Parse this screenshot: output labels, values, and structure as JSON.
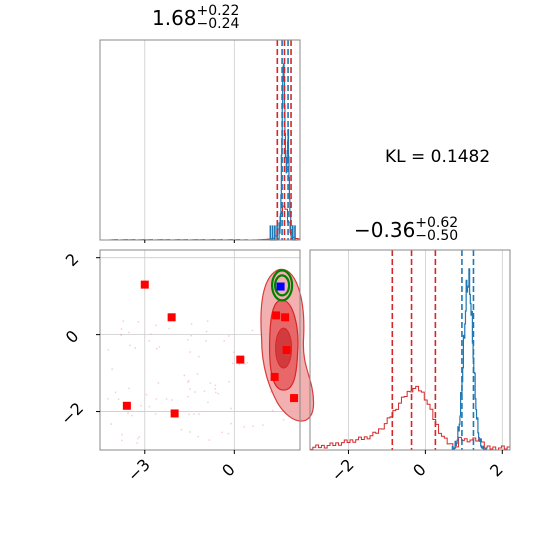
{
  "chart_data": [
    {
      "type": "histogram",
      "panel": "top-left",
      "title_value": "1.68",
      "title_plus": "+0.22",
      "title_minus": "−0.24",
      "xlim": [
        -4.5,
        2.2
      ],
      "red_dashed_lines": [
        1.44,
        1.68,
        1.9
      ],
      "blue_dashed_lines": [
        1.6,
        1.8
      ],
      "blue_peak": 1.65,
      "colors": {
        "red": "#d62728",
        "blue": "#1f77b4"
      }
    },
    {
      "type": "scatter",
      "panel": "bottom-left",
      "xlim": [
        -4.5,
        2.2
      ],
      "ylim": [
        -3.0,
        2.2
      ],
      "x_ticks": [
        "−3",
        "0"
      ],
      "y_ticks": [
        "2",
        "0",
        "−2"
      ],
      "red_squares": [
        {
          "x": -3.0,
          "y": 1.3
        },
        {
          "x": -2.1,
          "y": 0.45
        },
        {
          "x": -3.6,
          "y": -1.85
        },
        {
          "x": -2.0,
          "y": -2.05
        },
        {
          "x": 0.2,
          "y": -0.65
        },
        {
          "x": 1.4,
          "y": 0.5
        },
        {
          "x": 1.7,
          "y": 0.45
        },
        {
          "x": 1.75,
          "y": -0.4
        },
        {
          "x": 1.35,
          "y": -1.1
        },
        {
          "x": 2.0,
          "y": -1.65
        }
      ],
      "blue_square": {
        "x": 1.55,
        "y": 1.25
      },
      "red_contour_center": {
        "x": 1.65,
        "y": -0.35
      },
      "green_contour_center": {
        "x": 1.6,
        "y": 1.28
      },
      "colors": {
        "red": "#d62728",
        "blue": "#0000ff",
        "green": "#008000"
      }
    },
    {
      "type": "histogram",
      "panel": "bottom-right",
      "title_value": "−0.36",
      "title_plus": "+0.62",
      "title_minus": "−0.50",
      "xlim": [
        -3.0,
        2.2
      ],
      "x_ticks": [
        "−2",
        "0",
        "2"
      ],
      "red_dashed_lines": [
        -0.86,
        -0.36,
        0.26
      ],
      "blue_dashed_lines": [
        0.95,
        1.25
      ],
      "blue_peak": 1.12,
      "colors": {
        "red": "#d62728",
        "blue": "#1f77b4"
      }
    }
  ],
  "kl_label": "KL = 0.1482"
}
